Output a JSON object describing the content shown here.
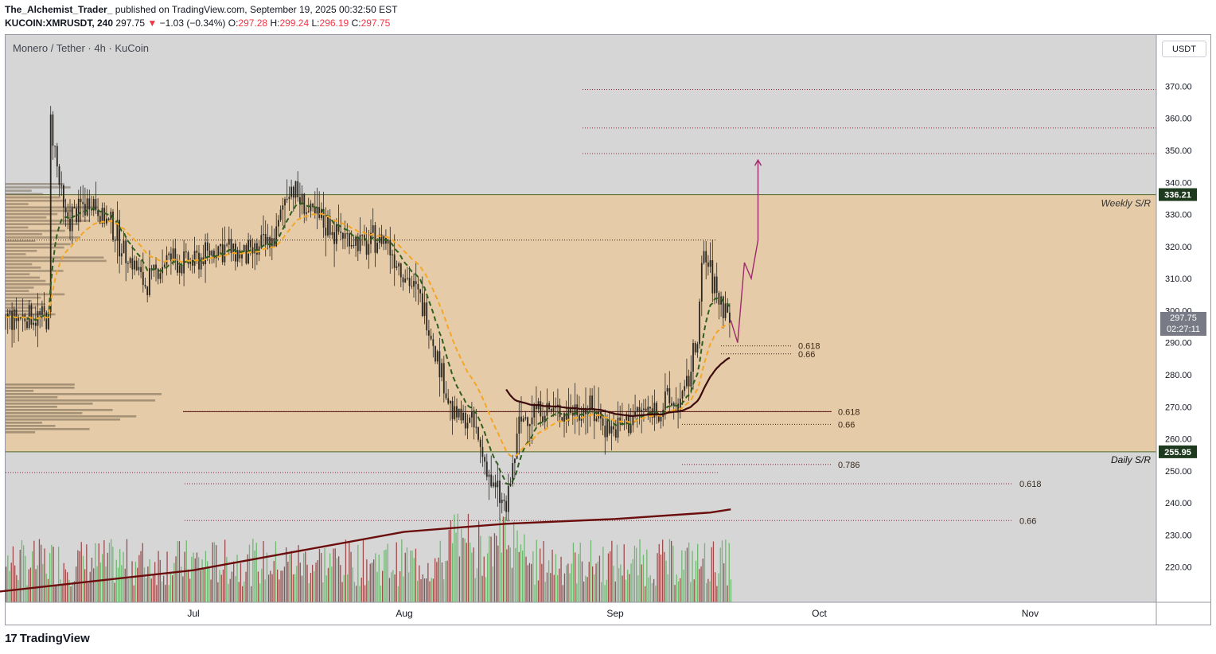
{
  "header": {
    "author": "The_Alchemist_Trader_",
    "published": " published on TradingView.com, September 19, 2025 00:32:50 EST",
    "symbol": "KUCOIN:XMRUSDT, 240",
    "last": "297.75",
    "change_arrow": "▼",
    "change": "−1.03 (−0.34%)",
    "o_label": "O:",
    "o": "297.28",
    "h_label": "H:",
    "h": "299.24",
    "l_label": "L:",
    "l": "296.19",
    "c_label": "C:",
    "c": "297.75"
  },
  "legend": "Monero / Tether · 4h · KuCoin",
  "currency_button": "USDT",
  "footer": {
    "brand": "TradingView",
    "icon": "tradingview-logo-icon"
  },
  "colors": {
    "plot_bg": "#d6d6d6",
    "zone": "#e8c9a0",
    "candle": "#2a2622",
    "ema_fast": "#2f5e1e",
    "ema_slow": "#f5a623",
    "ma_long": "#6b0d0d",
    "projection": "#9c2b6b",
    "tag_green": "#1e3a1e",
    "volume_up": "#4caf50",
    "volume_down": "#8b1e1e"
  },
  "chart_data": {
    "type": "candlestick",
    "title": "Monero / Tether · 4h · KuCoin",
    "y_unit": "USDT",
    "ylim": [
      209,
      386
    ],
    "y_ticks": [
      "370.00",
      "360.00",
      "350.00",
      "340.00",
      "330.00",
      "320.00",
      "310.00",
      "300.00",
      "290.00",
      "280.00",
      "270.00",
      "260.00",
      "250.00",
      "240.00",
      "230.00",
      "220.00"
    ],
    "x_ticks": [
      "Jul",
      "Aug",
      "Sep",
      "Oct",
      "Nov"
    ],
    "price_anchors": [
      [
        "Jun 10",
        360
      ],
      [
        "Jun 12",
        328
      ],
      [
        "Jun 16",
        335
      ],
      [
        "Jun 20",
        322
      ],
      [
        "Jun 24",
        308
      ],
      [
        "Jun 27",
        316
      ],
      [
        "Jul 1",
        315
      ],
      [
        "Jul 5",
        320
      ],
      [
        "Jul 9",
        317
      ],
      [
        "Jul 13",
        322
      ],
      [
        "Jul 15",
        340
      ],
      [
        "Jul 18",
        330
      ],
      [
        "Jul 22",
        325
      ],
      [
        "Jul 26",
        320
      ],
      [
        "Jul 29",
        323
      ],
      [
        "Aug 1",
        312
      ],
      [
        "Aug 4",
        300
      ],
      [
        "Aug 6",
        285
      ],
      [
        "Aug 8",
        268
      ],
      [
        "Aug 11",
        265
      ],
      [
        "Aug 14",
        245
      ],
      [
        "Aug 16",
        238
      ],
      [
        "Aug 18",
        265
      ],
      [
        "Aug 20",
        270
      ],
      [
        "Aug 24",
        268
      ],
      [
        "Aug 28",
        270
      ],
      [
        "Sep 1",
        262
      ],
      [
        "Sep 4",
        268
      ],
      [
        "Sep 8",
        270
      ],
      [
        "Sep 11",
        272
      ],
      [
        "Sep 13",
        290
      ],
      [
        "Sep 14",
        318
      ],
      [
        "Sep 16",
        305
      ],
      [
        "Sep 18",
        297.75
      ]
    ],
    "last_price": 297.75,
    "countdown": "02:27:11",
    "zone": {
      "top": 336.21,
      "bottom": 255.95,
      "top_label": "Weekly S/R",
      "bottom_label": "Daily S/R"
    },
    "horizontal_levels": [
      {
        "price": 369,
        "label": ""
      },
      {
        "price": 357,
        "label": ""
      },
      {
        "price": 349,
        "label": ""
      },
      {
        "price": 322,
        "label": ""
      },
      {
        "price": 289,
        "label": "0.618"
      },
      {
        "price": 286.5,
        "label": "0.66"
      },
      {
        "price": 268.5,
        "label": "0.618"
      },
      {
        "price": 264.5,
        "label": "0.66"
      },
      {
        "price": 252,
        "label": "0.786"
      },
      {
        "price": 249.5,
        "label": ""
      },
      {
        "price": 246,
        "label": "0.618"
      },
      {
        "price": 234.5,
        "label": "0.66"
      },
      {
        "price": 268.5,
        "label": ""
      }
    ],
    "projection": [
      [
        "Sep 18",
        297
      ],
      [
        "Sep 19",
        290
      ],
      [
        "Sep 20",
        315
      ],
      [
        "Sep 21",
        310
      ],
      [
        "Sep 22",
        322
      ],
      [
        "Sep 22",
        347
      ]
    ],
    "ma_200": [
      [
        "Jun 1",
        212
      ],
      [
        "Jul 1",
        219
      ],
      [
        "Aug 1",
        231
      ],
      [
        "Aug 16",
        233.5
      ],
      [
        "Sep 1",
        235
      ],
      [
        "Sep 15",
        237
      ],
      [
        "Sep 18",
        238
      ]
    ]
  }
}
